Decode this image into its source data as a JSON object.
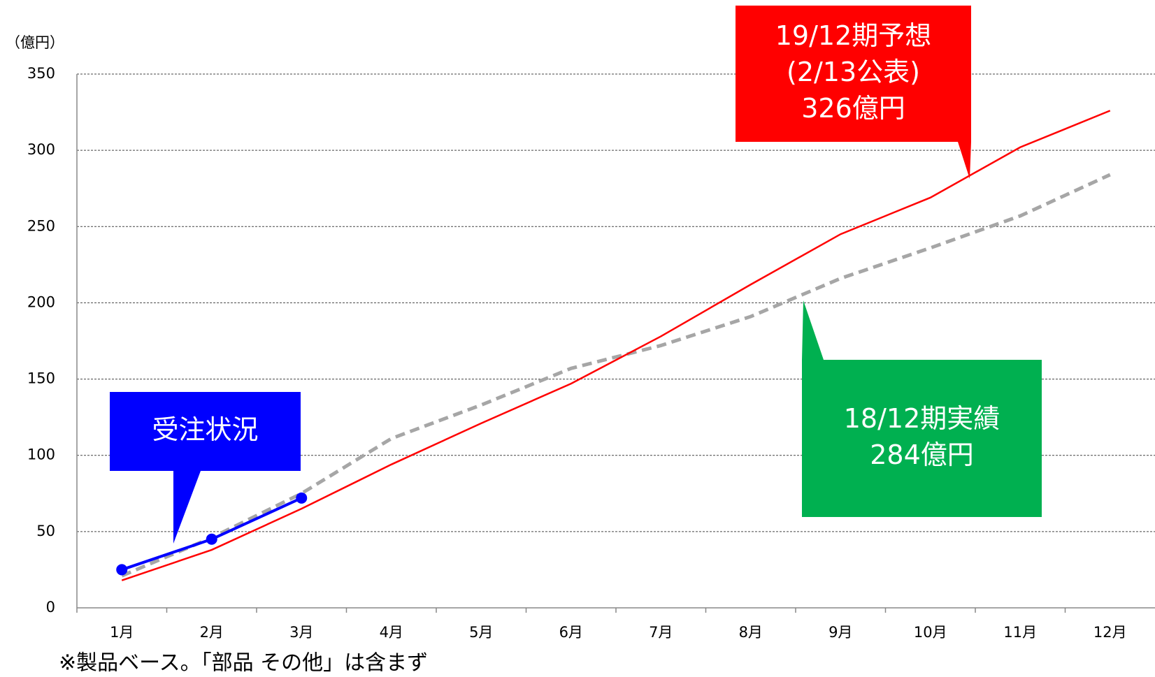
{
  "chart_data": {
    "type": "line",
    "y_label": "（億円）",
    "note": "※製品ベース。「部品 その他」は含まず",
    "categories": [
      "1月",
      "2月",
      "3月",
      "4月",
      "5月",
      "6月",
      "7月",
      "8月",
      "9月",
      "10月",
      "11月",
      "12月"
    ],
    "series": [
      {
        "color": "#a6a6a6",
        "dashed": true,
        "values": [
          21,
          46,
          75,
          111,
          133,
          157,
          172,
          191,
          216,
          236,
          257,
          284
        ]
      },
      {
        "color": "#ff0000",
        "values": [
          18,
          38,
          65,
          94,
          121,
          147,
          178,
          212,
          245,
          269,
          302,
          326
        ]
      },
      {
        "color": "#0000ff",
        "markers": true,
        "values": [
          25,
          45,
          72,
          null,
          null,
          null,
          null,
          null,
          null,
          null,
          null,
          null
        ]
      }
    ],
    "annotations": [
      {
        "color": "#ff0000",
        "lines": [
          "19/12期予想",
          "(2/13公表)",
          "326億円"
        ]
      },
      {
        "color": "#00b050",
        "lines": [
          "18/12期実績",
          "284億円"
        ]
      },
      {
        "color": "#0000ff",
        "lines": [
          "受注状況"
        ]
      }
    ],
    "ylim": [
      0,
      350
    ],
    "yticks": [
      0,
      50,
      100,
      150,
      200,
      250,
      300,
      350
    ],
    "grid": true
  }
}
